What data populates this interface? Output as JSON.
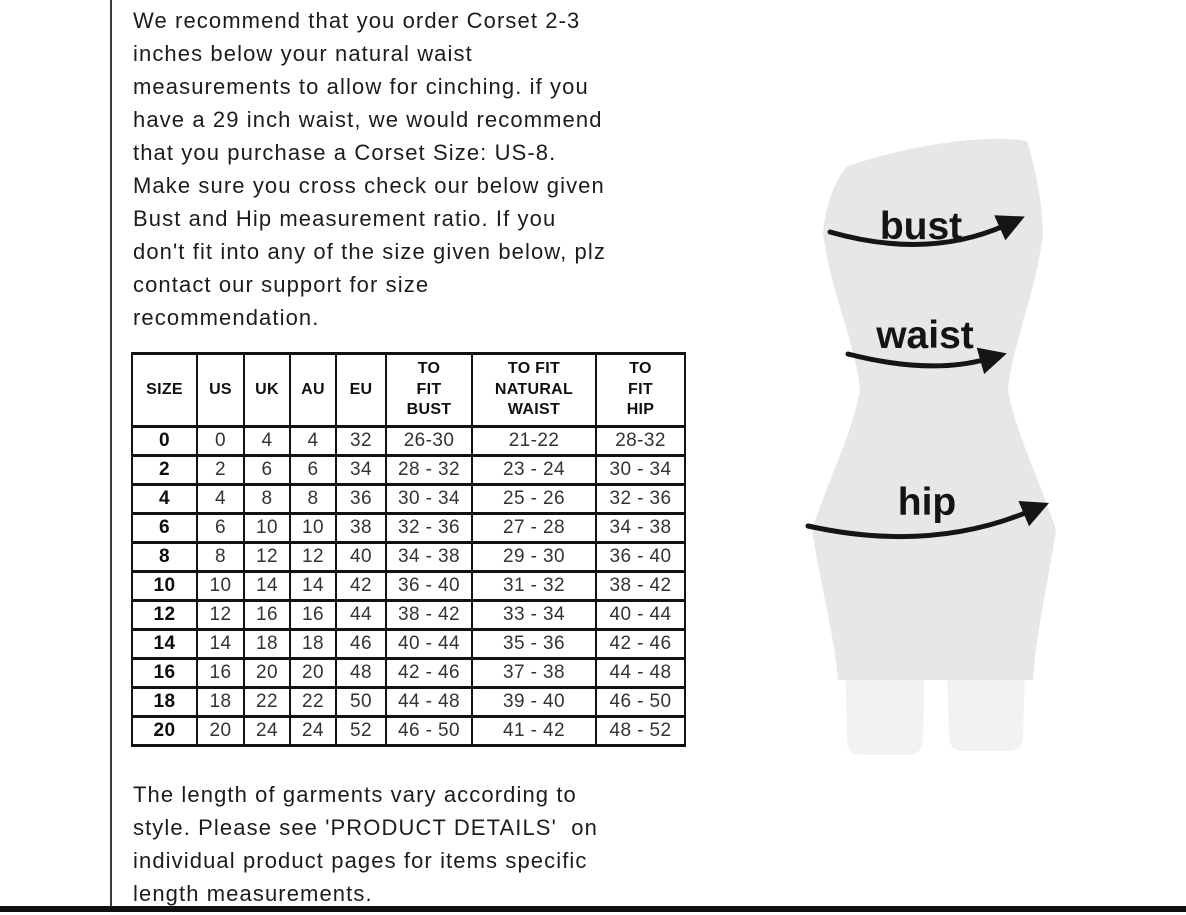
{
  "intro": {
    "lines": [
      "We recommend that you order Corset 2-3",
      "inches below your natural waist",
      "measurements to allow for cinching. if you",
      "have a 29 inch waist, we would recommend",
      "that you purchase a Corset Size: US-8.",
      "Make sure you cross check our below given",
      "Bust and Hip measurement ratio. If you",
      "don't fit into any of the size given below, plz",
      "contact our support for size",
      "recommendation."
    ]
  },
  "size_table": {
    "headers": [
      "SIZE",
      "US",
      "UK",
      "AU",
      "EU",
      "TO\nFIT\nBUST",
      "TO FIT\nNATURAL\nWAIST",
      "TO\nFIT\nHIP"
    ],
    "rows": [
      [
        "0",
        "0",
        "4",
        "4",
        "32",
        "26-30",
        "21-22",
        "28-32"
      ],
      [
        "2",
        "2",
        "6",
        "6",
        "34",
        "28 - 32",
        "23 - 24",
        "30 - 34"
      ],
      [
        "4",
        "4",
        "8",
        "8",
        "36",
        "30 - 34",
        "25 - 26",
        "32 - 36"
      ],
      [
        "6",
        "6",
        "10",
        "10",
        "38",
        "32 - 36",
        "27 - 28",
        "34 - 38"
      ],
      [
        "8",
        "8",
        "12",
        "12",
        "40",
        "34 - 38",
        "29 - 30",
        "36 - 40"
      ],
      [
        "10",
        "10",
        "14",
        "14",
        "42",
        "36 - 40",
        "31 - 32",
        "38 - 42"
      ],
      [
        "12",
        "12",
        "16",
        "16",
        "44",
        "38 - 42",
        "33 - 34",
        "40 - 44"
      ],
      [
        "14",
        "14",
        "18",
        "18",
        "46",
        "40 - 44",
        "35 - 36",
        "42 - 46"
      ],
      [
        "16",
        "16",
        "20",
        "20",
        "48",
        "42 - 46",
        "37 - 38",
        "44 - 48"
      ],
      [
        "18",
        "18",
        "22",
        "22",
        "50",
        "44 - 48",
        "39 - 40",
        "46 - 50"
      ],
      [
        "20",
        "20",
        "24",
        "24",
        "52",
        "46 - 50",
        "41 - 42",
        "48 - 52"
      ]
    ]
  },
  "figure": {
    "labels": {
      "bust": "bust",
      "waist": "waist",
      "hip": "hip"
    }
  },
  "footer": {
    "lines": [
      "The length of garments vary according to",
      "style. Please see 'PRODUCT DETAILS'  on",
      "individual product pages for items specific",
      "length measurements."
    ]
  },
  "colors": {
    "text": "#1c1c1c",
    "table_border": "#121212",
    "figure_body_fill": "#e7e7e7",
    "figure_leg_fill": "#f2f2f2",
    "arrow": "#151515",
    "bottom_bar": "#101010"
  }
}
